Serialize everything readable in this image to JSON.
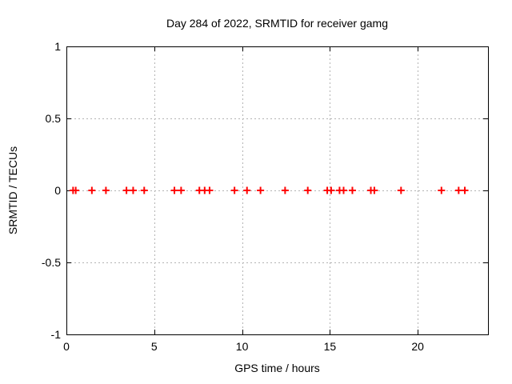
{
  "figure": {
    "background_color": "#ffffff",
    "text_color": "#000000",
    "grid_color": "#b4b4b4",
    "border_color": "#000000"
  },
  "chart_data": {
    "type": "scatter",
    "title": "Day 284 of 2022, SRMTID for receiver gamg",
    "xlabel": "GPS time / hours",
    "ylabel": "SRMTID / TECUs",
    "xlim": [
      0,
      24
    ],
    "ylim": [
      -1,
      1
    ],
    "grid": true,
    "legend": "none",
    "marker": {
      "shape": "plus",
      "color": "#ff0000",
      "size": 9
    },
    "xticks": [
      {
        "label": "0",
        "value": 0
      },
      {
        "label": "5",
        "value": 5
      },
      {
        "label": "10",
        "value": 10
      },
      {
        "label": "15",
        "value": 15
      },
      {
        "label": "20",
        "value": 20
      }
    ],
    "yticks": [
      {
        "label": "1",
        "value": 1
      },
      {
        "label": "0.5",
        "value": 0.5
      },
      {
        "label": "0",
        "value": 0
      },
      {
        "label": "-0.5",
        "value": -0.5
      },
      {
        "label": "-1",
        "value": -1
      }
    ],
    "series": [
      {
        "name": "SRMTID",
        "x": [
          0.38,
          0.53,
          1.45,
          2.25,
          3.42,
          3.8,
          4.43,
          6.15,
          6.53,
          7.57,
          7.87,
          8.15,
          9.57,
          10.28,
          11.05,
          12.45,
          13.74,
          14.85,
          15.07,
          15.55,
          15.78,
          16.28,
          17.33,
          17.53,
          19.05,
          21.35,
          22.33,
          22.68
        ],
        "y": [
          0,
          0,
          0,
          0,
          0,
          0,
          0,
          0,
          0,
          0,
          0,
          0,
          0,
          0,
          0,
          0,
          0,
          0,
          0,
          0,
          0,
          0,
          0,
          0,
          0,
          0,
          0,
          0
        ]
      }
    ]
  }
}
